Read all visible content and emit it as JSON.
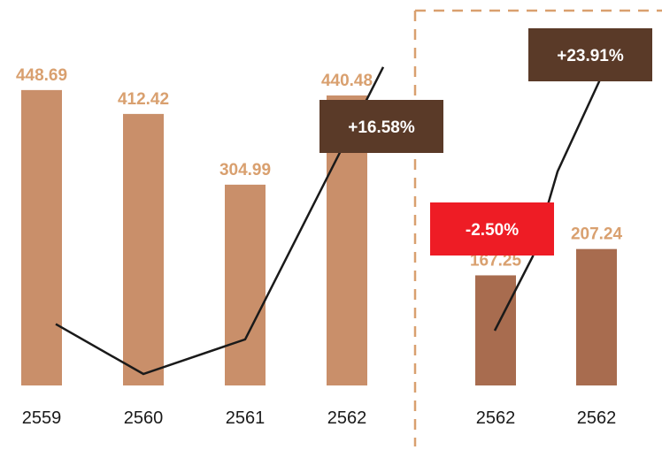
{
  "colors": {
    "bar_left": "#c98f6a",
    "bar_right": "#a86c4f",
    "value_text": "#d9a06f",
    "badge_dark": "#5a3a28",
    "badge_red": "#ee1c25",
    "line": "#1a1a1a",
    "divider": "#d9a06f"
  },
  "chart_data": [
    {
      "type": "bar",
      "categories": [
        "2559",
        "2560",
        "2561",
        "2562"
      ],
      "values": [
        448.69,
        412.42,
        304.99,
        440.48
      ],
      "value_labels": [
        "448.69",
        "412.42",
        "304.99",
        "440.48"
      ],
      "ylim": [
        0,
        470
      ],
      "trend_line": [
        0.16,
        0.03,
        0.12,
        0.83
      ],
      "badges": [
        {
          "text": "+16.58%",
          "color": "dark"
        }
      ]
    },
    {
      "type": "bar",
      "categories": [
        "2562",
        "2562"
      ],
      "values": [
        167.25,
        207.24
      ],
      "value_labels": [
        "167.25",
        "207.24"
      ],
      "ylim": [
        0,
        470
      ],
      "badges": [
        {
          "text": "-2.50%",
          "color": "red"
        },
        {
          "text": "+23.91%",
          "color": "dark"
        }
      ]
    }
  ]
}
